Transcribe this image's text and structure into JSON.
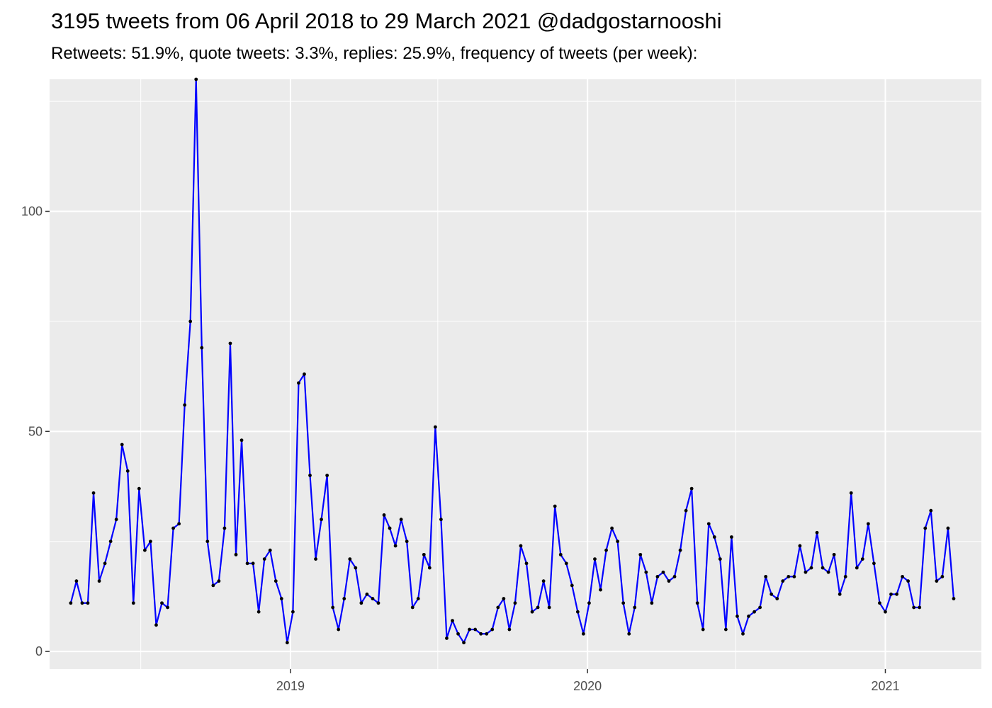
{
  "title": "3195 tweets from 06 April 2018 to 29 March 2021 @dadgostarnooshi",
  "subtitle": "Retweets: 51.9%, quote tweets: 3.3%, replies: 25.9%, frequency of tweets (per week):",
  "chart_data": {
    "type": "line",
    "title": "3195 tweets from 06 April 2018 to 29 March 2021 @dadgostarnooshi",
    "subtitle": "Retweets: 51.9%, quote tweets: 3.3%, replies: 25.9%, frequency of tweets (per week):",
    "xlabel": "",
    "ylabel": "",
    "x_type": "date",
    "x_range": [
      "2018-03-11",
      "2021-04-29"
    ],
    "ylim": [
      -4,
      130
    ],
    "y_ticks": [
      0,
      50,
      100
    ],
    "x_ticks": [
      {
        "date": "2019-01-01",
        "label": "2019"
      },
      {
        "date": "2020-01-01",
        "label": "2020"
      },
      {
        "date": "2021-01-01",
        "label": "2021"
      }
    ],
    "grid": true,
    "background": "#ebebeb",
    "line_color": "#0000ff",
    "point_color": "#000000",
    "series": [
      {
        "x": [
          "2018-04-06",
          "2018-04-13",
          "2018-04-20",
          "2018-04-27",
          "2018-05-04",
          "2018-05-11",
          "2018-05-18",
          "2018-05-25",
          "2018-06-01",
          "2018-06-08",
          "2018-06-15",
          "2018-06-22",
          "2018-06-29",
          "2018-07-06",
          "2018-07-13",
          "2018-07-20",
          "2018-07-27",
          "2018-08-03",
          "2018-08-10",
          "2018-08-17",
          "2018-08-24",
          "2018-08-31",
          "2018-09-07",
          "2018-09-14",
          "2018-09-21",
          "2018-09-28",
          "2018-10-05",
          "2018-10-12",
          "2018-10-19",
          "2018-10-26",
          "2018-11-02",
          "2018-11-09",
          "2018-11-16",
          "2018-11-23",
          "2018-11-30",
          "2018-12-07",
          "2018-12-14",
          "2018-12-21",
          "2018-12-28",
          "2019-01-04",
          "2019-01-11",
          "2019-01-18",
          "2019-01-25",
          "2019-02-01",
          "2019-02-08",
          "2019-02-15",
          "2019-02-22",
          "2019-03-01",
          "2019-03-08",
          "2019-03-15",
          "2019-03-22",
          "2019-03-29",
          "2019-04-05",
          "2019-04-12",
          "2019-04-19",
          "2019-04-26",
          "2019-05-03",
          "2019-05-10",
          "2019-05-17",
          "2019-05-24",
          "2019-05-31",
          "2019-06-07",
          "2019-06-14",
          "2019-06-21",
          "2019-06-28",
          "2019-07-05",
          "2019-07-12",
          "2019-07-19",
          "2019-07-26",
          "2019-08-02",
          "2019-08-09",
          "2019-08-16",
          "2019-08-23",
          "2019-08-30",
          "2019-09-06",
          "2019-09-13",
          "2019-09-20",
          "2019-09-27",
          "2019-10-04",
          "2019-10-11",
          "2019-10-18",
          "2019-10-25",
          "2019-11-01",
          "2019-11-08",
          "2019-11-15",
          "2019-11-22",
          "2019-11-29",
          "2019-12-06",
          "2019-12-13",
          "2019-12-20",
          "2019-12-27",
          "2020-01-03",
          "2020-01-10",
          "2020-01-17",
          "2020-01-24",
          "2020-01-31",
          "2020-02-07",
          "2020-02-14",
          "2020-02-21",
          "2020-02-28",
          "2020-03-06",
          "2020-03-13",
          "2020-03-20",
          "2020-03-27",
          "2020-04-03",
          "2020-04-10",
          "2020-04-17",
          "2020-04-24",
          "2020-05-01",
          "2020-05-08",
          "2020-05-15",
          "2020-05-22",
          "2020-05-29",
          "2020-06-05",
          "2020-06-12",
          "2020-06-19",
          "2020-06-26",
          "2020-07-03",
          "2020-07-10",
          "2020-07-17",
          "2020-07-24",
          "2020-07-31",
          "2020-08-07",
          "2020-08-14",
          "2020-08-21",
          "2020-08-28",
          "2020-09-04",
          "2020-09-11",
          "2020-09-18",
          "2020-09-25",
          "2020-10-02",
          "2020-10-09",
          "2020-10-16",
          "2020-10-23",
          "2020-10-30",
          "2020-11-06",
          "2020-11-13",
          "2020-11-20",
          "2020-11-27",
          "2020-12-04",
          "2020-12-11",
          "2020-12-18",
          "2020-12-25",
          "2021-01-01",
          "2021-01-08",
          "2021-01-15",
          "2021-01-22",
          "2021-01-29",
          "2021-02-05",
          "2021-02-12",
          "2021-02-19",
          "2021-02-26",
          "2021-03-05",
          "2021-03-12",
          "2021-03-19",
          "2021-03-26"
        ],
        "values": [
          11,
          16,
          11,
          11,
          36,
          16,
          20,
          25,
          30,
          47,
          41,
          11,
          37,
          23,
          25,
          6,
          11,
          10,
          28,
          29,
          56,
          75,
          130,
          69,
          25,
          15,
          16,
          28,
          70,
          22,
          48,
          20,
          20,
          9,
          21,
          23,
          16,
          12,
          2,
          9,
          61,
          63,
          40,
          21,
          30,
          40,
          10,
          5,
          12,
          21,
          19,
          11,
          13,
          12,
          11,
          31,
          28,
          24,
          30,
          25,
          10,
          12,
          22,
          19,
          51,
          30,
          3,
          7,
          4,
          2,
          5,
          5,
          4,
          4,
          5,
          10,
          12,
          5,
          11,
          24,
          20,
          9,
          10,
          16,
          10,
          33,
          22,
          20,
          15,
          9,
          4,
          11,
          21,
          14,
          23,
          28,
          25,
          11,
          4,
          10,
          22,
          18,
          11,
          17,
          18,
          16,
          17,
          23,
          32,
          37,
          11,
          5,
          29,
          26,
          21,
          5,
          26,
          8,
          4,
          8,
          9,
          10,
          17,
          13,
          12,
          16,
          17,
          17,
          24,
          18,
          19,
          27,
          19,
          18,
          22,
          13,
          17,
          36,
          19,
          21,
          29,
          20,
          11,
          9,
          13,
          13,
          17,
          16,
          10,
          10,
          28,
          32,
          16,
          17,
          28,
          12
        ]
      }
    ]
  }
}
